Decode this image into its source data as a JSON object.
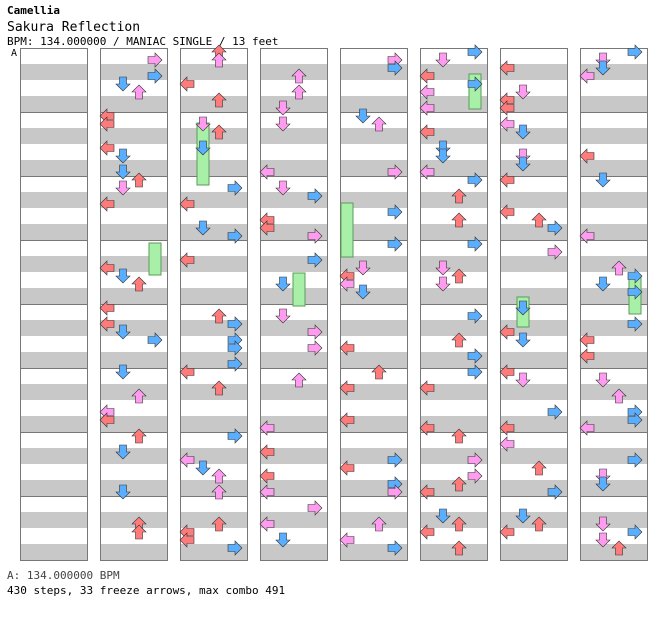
{
  "header": {
    "artist": "Camellia",
    "title": "Sakura Reflection",
    "info": "BPM: 134.000000 / MANIAC SINGLE / 13 feet"
  },
  "section_marker": "A",
  "footer": {
    "bpm_line": "A: 134.000000 BPM",
    "stats_line": "430 steps, 33 freeze arrows, max combo 491"
  },
  "colors": {
    "left": "#ff7a7a",
    "down": "#5aaeff",
    "up": "#ff7a7a",
    "right": "#5aaeff",
    "off_beat": "#ff9cf0",
    "freeze": "#a8f0a8",
    "stripe": "#c8c8c8"
  },
  "icons": {
    "left": "left-arrow-icon",
    "down": "down-arrow-icon",
    "up": "up-arrow-icon",
    "right": "right-arrow-icon",
    "freeze": "freeze-arrow-icon"
  }
}
